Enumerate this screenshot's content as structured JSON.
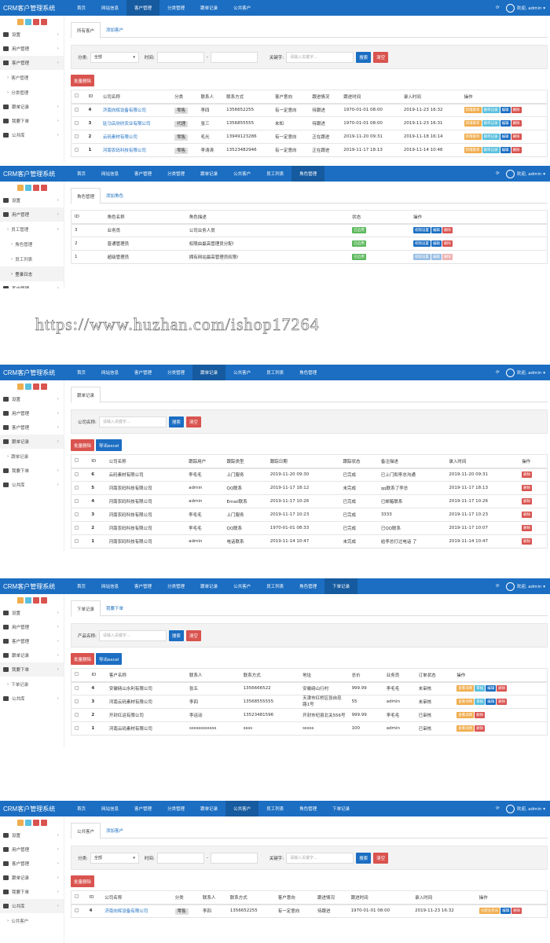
{
  "colors": {
    "header": "#1b6ec2",
    "orange": "#f0ad4e",
    "lightblue": "#5bc0de",
    "blue": "#1b6ec2",
    "red": "#d9534f",
    "green": "#5cb85c"
  },
  "watermark": "https://www.huzhan.com/ishop17264",
  "panels": [
    {
      "header": {
        "title": "CRM客户管理系统",
        "nav": [
          "首页",
          "网站信息",
          "客户管理",
          "分类管理",
          "跟单记录",
          "公共客户"
        ],
        "active": "客户管理",
        "user": "欢迎, admin ▾"
      },
      "sidebar": [
        {
          "label": "设置",
          "icon": "gears-icon"
        },
        {
          "label": "用户管理",
          "icon": "users-icon"
        },
        {
          "label": "客户管理",
          "icon": "grid-icon",
          "active": true,
          "sub": [
            {
              "label": "客户管理"
            },
            {
              "label": "分类管理"
            }
          ]
        },
        {
          "label": "跟单记录",
          "icon": "book-icon"
        },
        {
          "label": "我要下单",
          "icon": "list-icon"
        },
        {
          "label": "公共库",
          "icon": "database-icon"
        }
      ],
      "tabs": [
        "所有客户",
        "添加客户"
      ],
      "filter": {
        "category_label": "分类:",
        "category_value": "全部",
        "time_label": "时间:",
        "keyword_label": "关键字:",
        "keyword_placeholder": "请输入关键字...",
        "search": "搜索",
        "clear": "清空"
      },
      "buttons": [
        {
          "label": "批量删除",
          "color": "red"
        }
      ],
      "table": {
        "headers": [
          "ID",
          "公司名称",
          "分类",
          "联系人",
          "联系方式",
          "客户意向",
          "跟进情况",
          "跟进时间",
          "录入时间",
          "操作"
        ],
        "rows": [
          {
            "cells": [
              "4",
              {
                "text": "济南向辉设备有限公司",
                "style": "link"
              },
              {
                "text": "零售",
                "style": "tag"
              },
              "李四",
              "1356652255",
              "有一定意向",
              "待跟进",
              "1970-01-01 08:00",
              "2019-11-23 16:32"
            ],
            "actions": [
              {
                "label": "新增跟单",
                "color": "orange"
              },
              {
                "label": "跟单记录",
                "color": "lightblue"
              },
              {
                "label": "编辑",
                "color": "blue"
              },
              {
                "label": "删除",
                "color": "red"
              }
            ]
          },
          {
            "cells": [
              "3",
              {
                "text": "驻马店欣欣农业有限公司",
                "style": "link"
              },
              {
                "text": "代理",
                "style": "tag"
              },
              "张三",
              "1356855555",
              "未知",
              "待跟进",
              "1970-01-01 08:00",
              "2019-11-23 16:31"
            ],
            "actions": [
              {
                "label": "新增跟单",
                "color": "orange"
              },
              {
                "label": "跟单记录",
                "color": "lightblue"
              },
              {
                "label": "编辑",
                "color": "blue"
              },
              {
                "label": "删除",
                "color": "red"
              }
            ]
          },
          {
            "cells": [
              "2",
              {
                "text": "云码素材有限公司",
                "style": "link"
              },
              {
                "text": "零售",
                "style": "tag"
              },
              "毛光",
              "13949123286",
              "有一定意向",
              "正在跟进",
              "2019-11-20 09:31",
              "2019-11-18 16:14"
            ],
            "actions": [
              {
                "label": "新增跟单",
                "color": "orange"
              },
              {
                "label": "跟单记录",
                "color": "lightblue"
              },
              {
                "label": "编辑",
                "color": "blue"
              },
              {
                "label": "删除",
                "color": "red"
              }
            ]
          },
          {
            "cells": [
              "1",
              {
                "text": "河南农码科技有限公司",
                "style": "link"
              },
              {
                "text": "零售",
                "style": "tag"
              },
              "李涛涛",
              "13523482946",
              "有一定意向",
              "正在跟进",
              "2019-11-17 18:13",
              "2019-11-14 10:46"
            ],
            "actions": [
              {
                "label": "新增跟单",
                "color": "orange"
              },
              {
                "label": "跟单记录",
                "color": "lightblue"
              },
              {
                "label": "编辑",
                "color": "blue"
              },
              {
                "label": "删除",
                "color": "red"
              }
            ]
          }
        ]
      }
    },
    {
      "header": {
        "title": "CRM客户管理系统",
        "nav": [
          "首页",
          "网站信息",
          "客户管理",
          "分类管理",
          "跟单记录",
          "公共客户",
          "员工列表",
          "角色管理"
        ],
        "active": "角色管理",
        "user": "欢迎, admin ▾"
      },
      "sidebar": [
        {
          "label": "设置",
          "icon": "gears-icon"
        },
        {
          "label": "用户管理",
          "icon": "users-icon",
          "active": true,
          "sub": [
            {
              "label": "员工管理",
              "chevron": true
            },
            {
              "label": "角色管理",
              "deep": true
            },
            {
              "label": "员工列表",
              "deep": true
            },
            {
              "label": "登录日志",
              "deep": true,
              "active": true
            }
          ]
        },
        {
          "label": "客户管理",
          "icon": "grid-icon"
        },
        {
          "label": "跟单记录",
          "icon": "book-icon"
        },
        {
          "label": "我要下单",
          "icon": "list-icon"
        },
        {
          "label": "公共库",
          "icon": "database-icon"
        }
      ],
      "tabs": [
        "角色管理",
        "添加角色"
      ],
      "table": {
        "no_checkbox": true,
        "headers": [
          "ID",
          "角色名称",
          "角色描述",
          "状态",
          "操作"
        ],
        "rows": [
          {
            "cells": [
              "3",
              "业务员",
              "公司业务人员",
              {
                "text": "已启用",
                "style": "status"
              }
            ],
            "actions": [
              {
                "label": "权限设置",
                "color": "blue"
              },
              {
                "label": "编辑",
                "color": "blue"
              },
              {
                "label": "删除",
                "color": "red"
              }
            ]
          },
          {
            "cells": [
              "2",
              "普通管理员",
              "权限由最高管理员分配!",
              {
                "text": "已启用",
                "style": "status"
              }
            ],
            "actions": [
              {
                "label": "权限设置",
                "color": "blue"
              },
              {
                "label": "编辑",
                "color": "blue"
              },
              {
                "label": "删除",
                "color": "red"
              }
            ]
          },
          {
            "cells": [
              "1",
              "超级管理员",
              "拥有网站最高管理员权限!",
              {
                "text": "已启用",
                "style": "status"
              }
            ],
            "actions": [
              {
                "label": "权限设置",
                "color": "blue"
              },
              {
                "label": "编辑",
                "color": "blue"
              },
              {
                "label": "删除",
                "color": "red"
              }
            ],
            "disabled": true
          }
        ]
      }
    },
    {
      "header": {
        "title": "CRM客户管理系统",
        "nav": [
          "首页",
          "网站信息",
          "客户管理",
          "分类管理",
          "跟单记录",
          "公共客户",
          "员工列表",
          "角色管理"
        ],
        "active": "跟单记录",
        "user": "欢迎, admin ▾"
      },
      "sidebar": [
        {
          "label": "设置",
          "icon": "gears-icon"
        },
        {
          "label": "用户管理",
          "icon": "users-icon"
        },
        {
          "label": "客户管理",
          "icon": "grid-icon"
        },
        {
          "label": "跟单记录",
          "icon": "book-icon",
          "active": true,
          "sub": [
            {
              "label": "跟单记录"
            }
          ]
        },
        {
          "label": "我要下单",
          "icon": "list-icon"
        },
        {
          "label": "公共库",
          "icon": "database-icon"
        }
      ],
      "tabs": [
        "跟单记录"
      ],
      "filter": {
        "keyword_label": "公司名称:",
        "keyword_placeholder": "请输入关键字...",
        "search": "搜索",
        "clear": "清空"
      },
      "buttons": [
        {
          "label": "批量删除",
          "color": "red"
        },
        {
          "label": "导出excel",
          "color": "blue"
        }
      ],
      "table": {
        "headers": [
          "ID",
          "公司名称",
          "跟踪用户",
          "跟踪类型",
          "跟踪日期",
          "跟踪状态",
          "备注描述",
          "录入时间",
          "操作"
        ],
        "rows": [
          {
            "cells": [
              "6",
              "云码素材有限公司",
              "李毛毛",
              "上门服务",
              "2019-11-20 09:30",
              "已完成",
              "已上门和李总沟通",
              "2019-11-20 09:31"
            ],
            "actions": [
              {
                "label": "删除",
                "color": "red"
              }
            ]
          },
          {
            "cells": [
              "5",
              "河南农码科技有限公司",
              "admin",
              "QQ联系",
              "2019-11-17 18:12",
              "未完成",
              "qq联系了李总",
              "2019-11-17 18:13"
            ],
            "actions": [
              {
                "label": "删除",
                "color": "red"
              }
            ]
          },
          {
            "cells": [
              "4",
              "河南农码科技有限公司",
              "admin",
              "Email联系",
              "2019-11-17 10:26",
              "已完成",
              "已邮箱联系",
              "2019-11-17 10:26"
            ],
            "actions": [
              {
                "label": "删除",
                "color": "red"
              }
            ]
          },
          {
            "cells": [
              "3",
              "河南农码科技有限公司",
              "李毛毛",
              "上门服务",
              "2019-11-17 10:23",
              "已完成",
              "3333",
              "2019-11-17 10:23"
            ],
            "actions": [
              {
                "label": "删除",
                "color": "red"
              }
            ]
          },
          {
            "cells": [
              "2",
              "河南农码科技有限公司",
              "李毛毛",
              "QQ联系",
              "1970-01-01 08:33",
              "已完成",
              "已QQ联系",
              "2019-11-17 10:07"
            ],
            "actions": [
              {
                "label": "删除",
                "color": "red"
              }
            ]
          },
          {
            "cells": [
              "1",
              "河南农码科技有限公司",
              "admin",
              "电话联系",
              "2019-11-14 10:47",
              "未完成",
              "给李总打过电话 了",
              "2019-11-14 10:47"
            ],
            "actions": [
              {
                "label": "删除",
                "color": "red"
              }
            ]
          }
        ]
      }
    },
    {
      "header": {
        "title": "CRM客户管理系统",
        "nav": [
          "首页",
          "网站信息",
          "客户管理",
          "分类管理",
          "跟单记录",
          "公共客户",
          "员工列表",
          "角色管理",
          "下单记录"
        ],
        "active": "下单记录",
        "user": "欢迎, admin ▾"
      },
      "sidebar": [
        {
          "label": "设置",
          "icon": "gears-icon"
        },
        {
          "label": "用户管理",
          "icon": "users-icon"
        },
        {
          "label": "客户管理",
          "icon": "grid-icon"
        },
        {
          "label": "跟单记录",
          "icon": "book-icon"
        },
        {
          "label": "我要下单",
          "icon": "list-icon",
          "active": true,
          "sub": [
            {
              "label": "下单记录"
            }
          ]
        },
        {
          "label": "公共库",
          "icon": "database-icon"
        }
      ],
      "tabs": [
        "下单记录",
        "我要下单"
      ],
      "filter": {
        "keyword_label": "产品名称:",
        "keyword_placeholder": "请输入关键字...",
        "search": "搜索",
        "clear": "清空"
      },
      "buttons": [
        {
          "label": "批量删除",
          "color": "red"
        },
        {
          "label": "导出excel",
          "color": "blue"
        }
      ],
      "table": {
        "headers": [
          "ID",
          "客户名称",
          "联系人",
          "联系方式",
          "地址",
          "总价",
          "业务员",
          "订单状态",
          "操作"
        ],
        "rows": [
          {
            "cells": [
              "4",
              "安徽砀山水利有限公司",
              "张五",
              "1356666522",
              "安徽砀山行村",
              "999.99",
              "李毛毛",
              "未审核"
            ],
            "actions": [
              {
                "label": "查看详情",
                "color": "orange"
              },
              {
                "label": "审核",
                "color": "lightblue"
              },
              {
                "label": "编辑",
                "color": "blue"
              },
              {
                "label": "删除",
                "color": "red"
              }
            ]
          },
          {
            "cells": [
              "3",
              "河南云码素材有限公司",
              "李四",
              "13568555555",
              {
                "text": "天津市红桥区张自忠路1号",
                "style": "wrap"
              },
              "55",
              "admin",
              "未审核"
            ],
            "actions": [
              {
                "label": "查看详情",
                "color": "orange"
              },
              {
                "label": "审核",
                "color": "lightblue"
              },
              {
                "label": "编辑",
                "color": "blue"
              },
              {
                "label": "删除",
                "color": "red"
              }
            ]
          },
          {
            "cells": [
              "2",
              "开封红运有限公司",
              "李运动",
              "13523481596",
              "开封市杞县北关556号",
              "999.99",
              "李毛毛",
              "已审核"
            ],
            "actions": [
              {
                "label": "查看详情",
                "color": "orange"
              },
              {
                "label": "删除",
                "color": "red"
              }
            ]
          },
          {
            "cells": [
              "1",
              "河南云码素材有限公司",
              "ssssssssssss",
              "ssss",
              "sssss",
              "100",
              "admin",
              "已审核"
            ],
            "actions": [
              {
                "label": "查看详情",
                "color": "orange"
              },
              {
                "label": "删除",
                "color": "red"
              }
            ]
          }
        ]
      }
    },
    {
      "header": {
        "title": "CRM客户管理系统",
        "nav": [
          "首页",
          "网站信息",
          "客户管理",
          "分类管理",
          "跟单记录",
          "公共客户",
          "员工列表",
          "角色管理",
          "下单记录"
        ],
        "active": "公共客户",
        "user": "欢迎, admin ▾"
      },
      "sidebar": [
        {
          "label": "设置",
          "icon": "gears-icon"
        },
        {
          "label": "用户管理",
          "icon": "users-icon"
        },
        {
          "label": "客户管理",
          "icon": "grid-icon"
        },
        {
          "label": "跟单记录",
          "icon": "book-icon"
        },
        {
          "label": "我要下单",
          "icon": "list-icon"
        },
        {
          "label": "公共库",
          "icon": "database-icon",
          "active": true,
          "sub": [
            {
              "label": "公共客户"
            }
          ]
        }
      ],
      "tabs": [
        "公共客户",
        "添加客户"
      ],
      "filter": {
        "category_label": "分类:",
        "category_value": "全部",
        "time_label": "时间:",
        "keyword_label": "关键字:",
        "keyword_placeholder": "请输入关键字...",
        "search": "搜索",
        "clear": "清空"
      },
      "buttons": [
        {
          "label": "批量删除",
          "color": "red"
        }
      ],
      "table": {
        "headers": [
          "ID",
          "公司名称",
          "分类",
          "联系人",
          "联系方式",
          "客户意向",
          "跟进情况",
          "跟进时间",
          "录入时间",
          "操作"
        ],
        "rows": [
          {
            "cells": [
              "4",
              {
                "text": "济南向辉设备有限公司",
                "style": "link"
              },
              {
                "text": "零售",
                "style": "tag"
              },
              "李四",
              "1356652255",
              "有一定意向",
              "待跟进",
              "1970-01-01 08:00",
              "2019-11-23 16:32"
            ],
            "actions": [
              {
                "label": "分配业务员",
                "color": "orange"
              },
              {
                "label": "编辑",
                "color": "blue"
              },
              {
                "label": "删除",
                "color": "red"
              }
            ]
          }
        ]
      }
    }
  ]
}
